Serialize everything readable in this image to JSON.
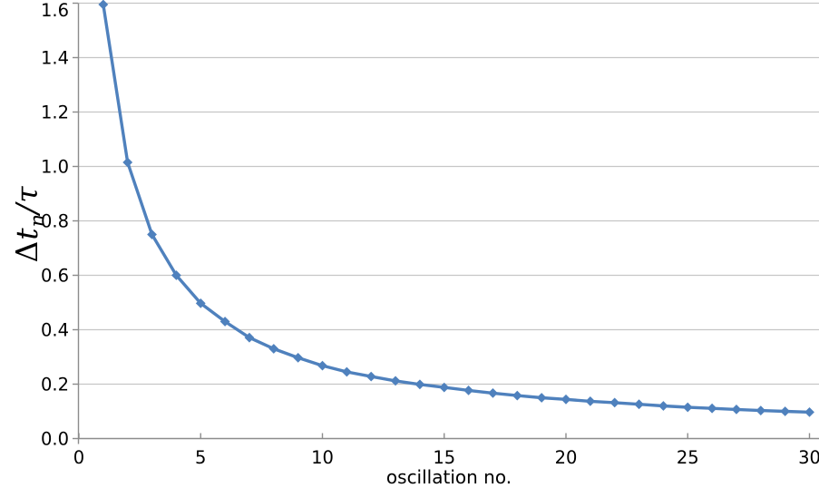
{
  "figure": {
    "background": "#ffffff",
    "title": ""
  },
  "chart_data": {
    "type": "line",
    "title": "",
    "xlabel": "oscillation no.",
    "ylabel": "Δt_n/τ",
    "ylabel_parts": {
      "delta": "Δ",
      "variable": "t",
      "subscript": "n",
      "slash": "/",
      "tau": "τ"
    },
    "x": [
      1,
      2,
      3,
      4,
      5,
      6,
      7,
      8,
      9,
      10,
      11,
      12,
      13,
      14,
      15,
      16,
      17,
      18,
      19,
      20,
      21,
      22,
      23,
      24,
      25,
      26,
      27,
      28,
      29,
      30
    ],
    "values": [
      1.595,
      1.015,
      0.75,
      0.6,
      0.497,
      0.43,
      0.371,
      0.33,
      0.297,
      0.268,
      0.245,
      0.228,
      0.212,
      0.199,
      0.188,
      0.177,
      0.167,
      0.158,
      0.15,
      0.144,
      0.137,
      0.132,
      0.126,
      0.12,
      0.115,
      0.111,
      0.107,
      0.103,
      0.1,
      0.097
    ],
    "xlim": [
      0,
      30
    ],
    "ylim": [
      0,
      1.6
    ],
    "x_ticks": [
      0,
      5,
      10,
      15,
      20,
      25,
      30
    ],
    "x_tick_labels": [
      "0",
      "5",
      "10",
      "15",
      "20",
      "25",
      "30"
    ],
    "y_ticks": [
      0,
      0.2,
      0.4,
      0.6,
      0.8,
      1.0,
      1.2,
      1.4,
      1.6
    ],
    "y_tick_labels": [
      "0.0",
      "0.2",
      "0.4",
      "0.6",
      "0.8",
      "1.0",
      "1.2",
      "1.4",
      "1.6"
    ],
    "grid": "horizontal-only",
    "legend": "none",
    "marker": "diamond",
    "line_color": "#4f81bd",
    "grid_color": "#c6c6c6",
    "axis_color": "#8c8c8c",
    "label_color": "#000000"
  }
}
